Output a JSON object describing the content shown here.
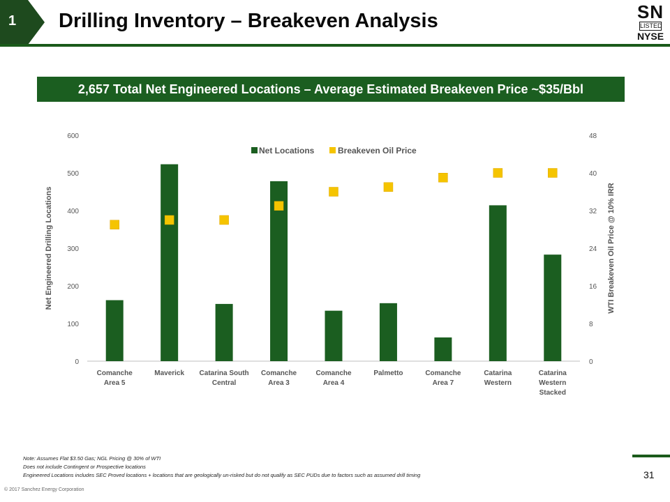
{
  "header": {
    "section_number": "1",
    "title": "Drilling Inventory – Breakeven Analysis",
    "logo": {
      "ticker": "SN",
      "listed": "LISTED",
      "exchange": "NYSE"
    }
  },
  "banner": {
    "text": "2,657 Total Net Engineered Locations – Average Estimated Breakeven Price ~$35/Bbl"
  },
  "chart_data": {
    "type": "bar",
    "categories": [
      [
        "Comanche",
        "Area 5"
      ],
      [
        "Maverick"
      ],
      [
        "Catarina South",
        "Central"
      ],
      [
        "Comanche",
        "Area 3"
      ],
      [
        "Comanche",
        "Area 4"
      ],
      [
        "Palmetto"
      ],
      [
        "Comanche",
        "Area 7"
      ],
      [
        "Catarina",
        "Western"
      ],
      [
        "Catarina",
        "Western",
        "Stacked"
      ]
    ],
    "series": [
      {
        "name": "Net Locations",
        "kind": "bar",
        "axis": "left",
        "color": "#1b5e20",
        "values": [
          162,
          523,
          152,
          478,
          134,
          154,
          63,
          414,
          283
        ]
      },
      {
        "name": "Breakeven Oil Price",
        "kind": "marker",
        "axis": "right",
        "color": "#f5c400",
        "values": [
          29,
          30,
          30,
          33,
          36,
          37,
          39,
          40,
          40
        ]
      }
    ],
    "ylabel": "Net Engineered Drilling Locations",
    "y2label": "WTI Breakeven Oil Price @ 10% IRR",
    "ylim": [
      0,
      600
    ],
    "y2lim": [
      0,
      48
    ],
    "yticks": [
      0,
      100,
      200,
      300,
      400,
      500,
      600
    ],
    "y2ticks": [
      0,
      8,
      16,
      24,
      32,
      40,
      48
    ],
    "legend_position": "top-center"
  },
  "footer": {
    "notes": [
      "Note: Assumes Flat $3.50 Gas; NGL Pricing @ 30% of WTI",
      "Does not include Contingent or Prospective locations",
      "Engineered Locations includes SEC Proved locations + locations that are geologically un-risked but do not qualify as SEC PUDs due to factors such as assumed drill timing"
    ],
    "page_number": "31",
    "copyright": "© 2017 Sanchez Energy Corporation"
  }
}
